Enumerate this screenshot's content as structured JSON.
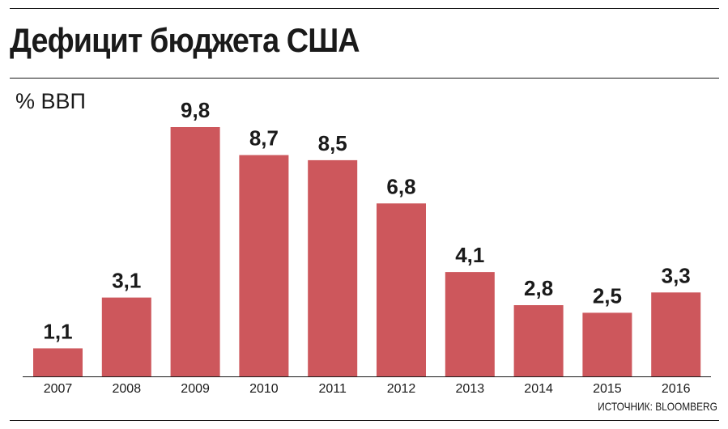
{
  "title": "Дефицит бюджета США",
  "source": "ИСТОЧНИК: BLOOMBERG",
  "colors": {
    "bar": "#cd575c",
    "text": "#1a1a1a",
    "axis": "#1a1a1a"
  },
  "chart_data": {
    "type": "bar",
    "title": "Дефицит бюджета США",
    "ylabel": "% ВВП",
    "xlabel": "",
    "categories": [
      "2007",
      "2008",
      "2009",
      "2010",
      "2011",
      "2012",
      "2013",
      "2014",
      "2015",
      "2016"
    ],
    "values": [
      1.1,
      3.1,
      9.8,
      8.7,
      8.5,
      6.8,
      4.1,
      2.8,
      2.5,
      3.3
    ],
    "value_labels": [
      "1,1",
      "3,1",
      "9,8",
      "8,7",
      "8,5",
      "6,8",
      "4,1",
      "2,8",
      "2,5",
      "3,3"
    ],
    "ylim": [
      0,
      9.8
    ],
    "grid": false,
    "legend": "none"
  }
}
